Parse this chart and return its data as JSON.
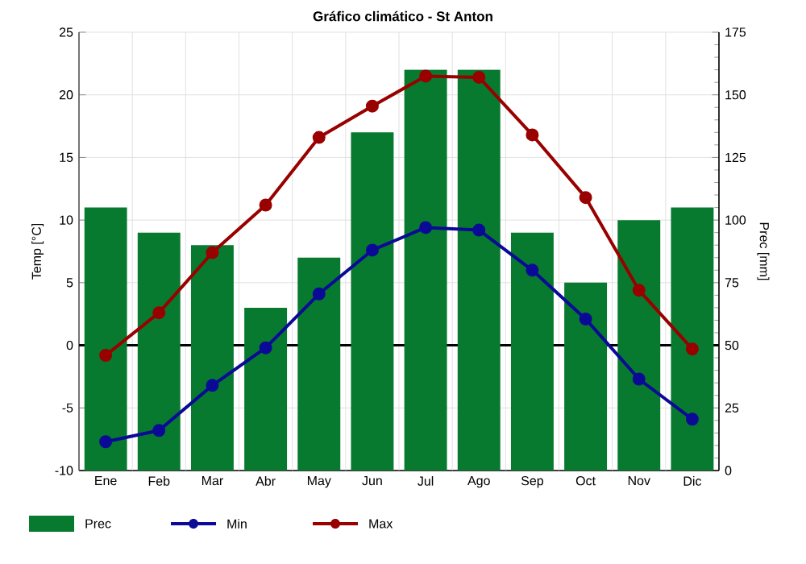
{
  "chart_data": {
    "type": "bar",
    "title": "Gráfico climático - St Anton",
    "categories": [
      "Ene",
      "Feb",
      "Mar",
      "Abr",
      "May",
      "Jun",
      "Jul",
      "Ago",
      "Sep",
      "Oct",
      "Nov",
      "Dic"
    ],
    "series": [
      {
        "name": "Prec",
        "axis": "y2",
        "color": "#077a2f",
        "values": [
          105,
          95,
          90,
          65,
          85,
          135,
          160,
          160,
          95,
          75,
          100,
          105
        ]
      },
      {
        "name": "Min",
        "type": "line",
        "color": "#0a0a96",
        "values": [
          -7.7,
          -6.8,
          -3.2,
          -0.2,
          4.1,
          7.6,
          9.4,
          9.2,
          6.0,
          2.1,
          -2.7,
          -5.9
        ]
      },
      {
        "name": "Max",
        "type": "line",
        "color": "#990000",
        "values": [
          -0.8,
          2.6,
          7.4,
          11.2,
          16.6,
          19.1,
          21.5,
          21.4,
          16.8,
          11.8,
          4.4,
          -0.3
        ]
      }
    ],
    "ylabel": "Temp [°C]",
    "y2label": "Prec [mm]",
    "ylim": [
      -10,
      25
    ],
    "yticks": [
      -10,
      -5,
      0,
      5,
      10,
      15,
      20,
      25
    ],
    "y2lim": [
      0,
      175
    ],
    "y2ticks": [
      0,
      25,
      50,
      75,
      100,
      125,
      150,
      175
    ],
    "ref_lines": [
      {
        "axis": "y",
        "value": 0,
        "color": "#000000"
      }
    ],
    "grid": true,
    "legend": "bottom left",
    "marker": "circle",
    "line_style": "solid"
  }
}
